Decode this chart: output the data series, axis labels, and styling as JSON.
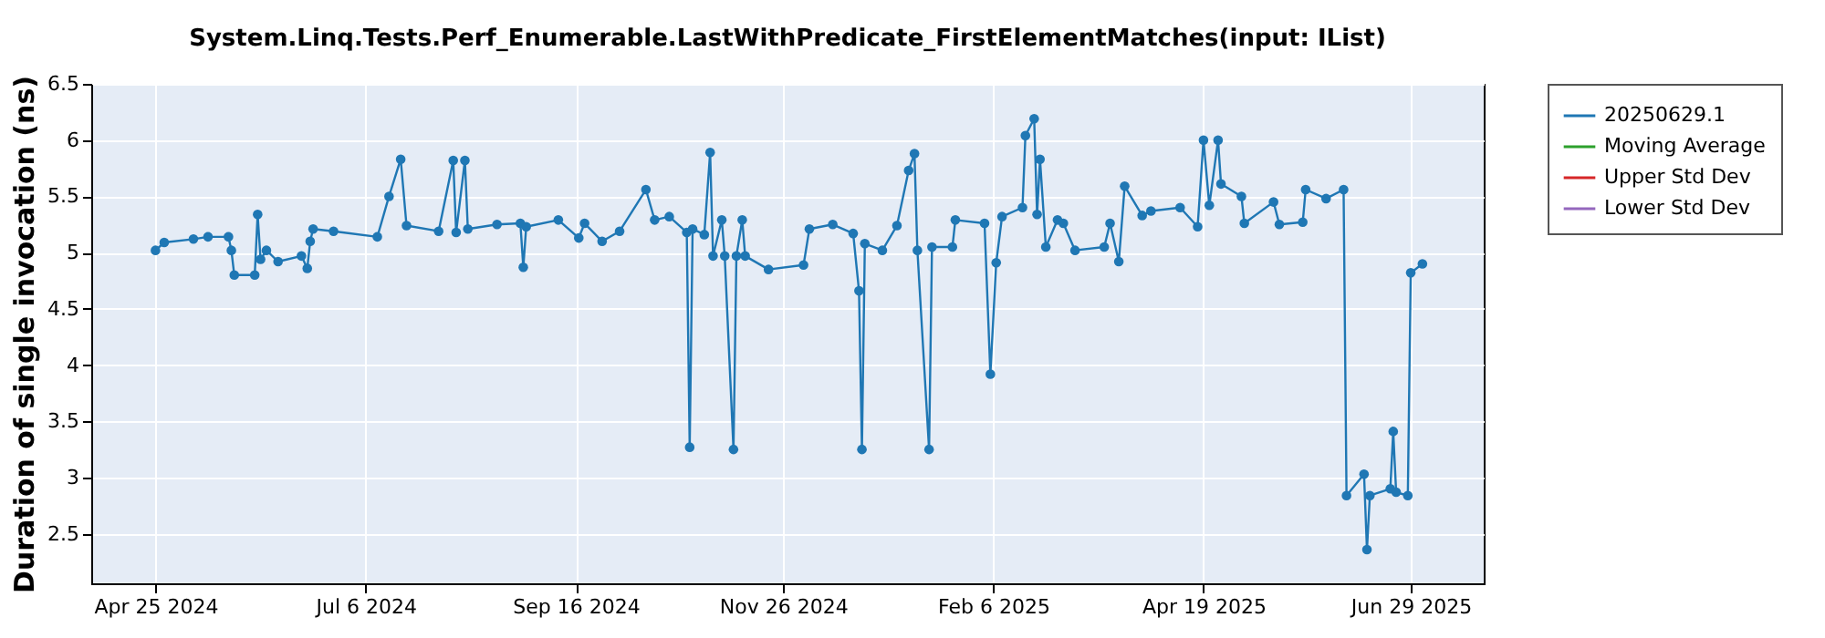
{
  "chart_data": {
    "type": "line",
    "title": "System.Linq.Tests.Perf_Enumerable.LastWithPredicate_FirstElementMatches(input: IList)",
    "ylabel": "Duration of single invocation (ns)",
    "x": [
      "2024-04-25",
      "2024-04-28",
      "2024-05-08",
      "2024-05-13",
      "2024-05-20",
      "2024-05-21",
      "2024-05-22",
      "2024-05-29",
      "2024-05-30",
      "2024-05-31",
      "2024-06-02",
      "2024-06-06",
      "2024-06-14",
      "2024-06-16",
      "2024-06-17",
      "2024-06-18",
      "2024-06-25",
      "2024-07-10",
      "2024-07-14",
      "2024-07-18",
      "2024-07-20",
      "2024-07-31",
      "2024-08-05",
      "2024-08-06",
      "2024-08-09",
      "2024-08-10",
      "2024-08-20",
      "2024-08-28",
      "2024-08-29",
      "2024-08-30",
      "2024-09-10",
      "2024-09-17",
      "2024-09-19",
      "2024-09-25",
      "2024-10-01",
      "2024-10-10",
      "2024-10-13",
      "2024-10-18",
      "2024-10-24",
      "2024-10-25",
      "2024-10-26",
      "2024-10-30",
      "2024-11-01",
      "2024-11-02",
      "2024-11-05",
      "2024-11-06",
      "2024-11-09",
      "2024-11-10",
      "2024-11-12",
      "2024-11-13",
      "2024-11-21",
      "2024-12-03",
      "2024-12-05",
      "2024-12-13",
      "2024-12-20",
      "2024-12-22",
      "2024-12-23",
      "2024-12-24",
      "2024-12-30",
      "2025-01-04",
      "2025-01-08",
      "2025-01-10",
      "2025-01-11",
      "2025-01-15",
      "2025-01-16",
      "2025-01-23",
      "2025-01-24",
      "2025-02-03",
      "2025-02-05",
      "2025-02-07",
      "2025-02-09",
      "2025-02-16",
      "2025-02-17",
      "2025-02-20",
      "2025-02-21",
      "2025-02-22",
      "2025-02-24",
      "2025-02-28",
      "2025-03-02",
      "2025-03-06",
      "2025-03-16",
      "2025-03-18",
      "2025-03-21",
      "2025-03-23",
      "2025-03-29",
      "2025-04-01",
      "2025-04-11",
      "2025-04-17",
      "2025-04-19",
      "2025-04-21",
      "2025-04-24",
      "2025-04-25",
      "2025-05-02",
      "2025-05-03",
      "2025-05-13",
      "2025-05-15",
      "2025-05-23",
      "2025-05-24",
      "2025-05-31",
      "2025-06-06",
      "2025-06-07",
      "2025-06-13",
      "2025-06-14",
      "2025-06-15",
      "2025-06-22",
      "2025-06-23",
      "2025-06-24",
      "2025-06-28",
      "2025-06-29",
      "2025-07-03"
    ],
    "series": [
      {
        "name": "20250629.1",
        "color": "#1f77b4",
        "values": [
          5.02,
          5.09,
          5.12,
          5.14,
          5.14,
          5.02,
          4.8,
          4.8,
          5.34,
          4.94,
          5.02,
          4.92,
          4.97,
          4.86,
          5.1,
          5.21,
          5.19,
          5.14,
          5.5,
          5.83,
          5.24,
          5.19,
          5.82,
          5.18,
          5.82,
          5.21,
          5.25,
          5.26,
          4.87,
          5.23,
          5.29,
          5.13,
          5.26,
          5.1,
          5.19,
          5.56,
          5.29,
          5.32,
          5.18,
          3.27,
          5.21,
          5.16,
          5.89,
          4.97,
          5.29,
          4.97,
          3.25,
          4.97,
          5.29,
          4.97,
          4.85,
          4.89,
          5.21,
          5.25,
          5.17,
          4.66,
          3.25,
          5.08,
          5.02,
          5.24,
          5.73,
          5.88,
          5.02,
          3.25,
          5.05,
          5.05,
          5.29,
          5.26,
          3.92,
          4.91,
          5.32,
          5.4,
          6.04,
          6.19,
          5.34,
          5.83,
          5.05,
          5.29,
          5.26,
          5.02,
          5.05,
          5.26,
          4.92,
          5.59,
          5.33,
          5.37,
          5.4,
          5.23,
          6.0,
          5.42,
          6.0,
          5.61,
          5.5,
          5.26,
          5.45,
          5.25,
          5.27,
          5.56,
          5.48,
          5.56,
          2.84,
          3.03,
          2.36,
          2.84,
          2.9,
          3.41,
          2.87,
          2.84,
          4.82,
          4.9
        ]
      },
      {
        "name": "Moving Average",
        "color": "#2ca02c",
        "values": [
          null,
          null,
          null,
          null,
          null,
          null,
          null,
          null,
          null,
          null,
          null,
          null,
          null,
          null,
          null,
          null,
          null,
          null,
          null,
          null,
          null,
          null,
          null,
          null,
          null,
          null,
          null,
          null,
          null,
          null,
          null,
          null,
          null,
          null,
          null,
          null,
          null,
          null,
          null,
          null,
          null,
          null,
          null,
          null,
          null,
          null,
          null,
          null,
          null,
          null,
          null,
          null,
          null,
          null,
          null,
          null,
          null,
          null,
          null,
          null,
          null,
          null,
          null,
          null,
          null,
          null,
          null,
          null,
          null,
          null,
          null,
          null,
          null,
          null,
          null,
          null,
          null,
          null,
          null,
          null,
          null,
          null,
          null,
          null,
          null,
          null,
          null,
          null,
          null,
          null,
          null,
          null,
          null,
          null,
          null,
          null,
          null,
          null,
          null,
          null,
          null,
          null,
          null,
          null,
          null,
          null,
          null,
          null,
          null,
          null
        ]
      },
      {
        "name": "Upper Std Dev",
        "color": "#d62728",
        "values": [
          null,
          null,
          null,
          null,
          null,
          null,
          null,
          null,
          null,
          null,
          null,
          null,
          null,
          null,
          null,
          null,
          null,
          null,
          null,
          null,
          null,
          null,
          null,
          null,
          null,
          null,
          null,
          null,
          null,
          null,
          null,
          null,
          null,
          null,
          null,
          null,
          null,
          null,
          null,
          null,
          null,
          null,
          null,
          null,
          null,
          null,
          null,
          null,
          null,
          null,
          null,
          null,
          null,
          null,
          null,
          null,
          null,
          null,
          null,
          null,
          null,
          null,
          null,
          null,
          null,
          null,
          null,
          null,
          null,
          null,
          null,
          null,
          null,
          null,
          null,
          null,
          null,
          null,
          null,
          null,
          null,
          null,
          null,
          null,
          null,
          null,
          null,
          null,
          null,
          null,
          null,
          null,
          null,
          null,
          null,
          null,
          null,
          null,
          null,
          null,
          null,
          null,
          null,
          null,
          null,
          null,
          null,
          null,
          null,
          null
        ]
      },
      {
        "name": "Lower Std Dev",
        "color": "#9467bd",
        "values": [
          null,
          null,
          null,
          null,
          null,
          null,
          null,
          null,
          null,
          null,
          null,
          null,
          null,
          null,
          null,
          null,
          null,
          null,
          null,
          null,
          null,
          null,
          null,
          null,
          null,
          null,
          null,
          null,
          null,
          null,
          null,
          null,
          null,
          null,
          null,
          null,
          null,
          null,
          null,
          null,
          null,
          null,
          null,
          null,
          null,
          null,
          null,
          null,
          null,
          null,
          null,
          null,
          null,
          null,
          null,
          null,
          null,
          null,
          null,
          null,
          null,
          null,
          null,
          null,
          null,
          null,
          null,
          null,
          null,
          null,
          null,
          null,
          null,
          null,
          null,
          null,
          null,
          null,
          null,
          null,
          null,
          null,
          null,
          null,
          null,
          null,
          null,
          null,
          null,
          null,
          null,
          null,
          null,
          null,
          null,
          null,
          null,
          null,
          null,
          null,
          null,
          null,
          null,
          null,
          null,
          null,
          null,
          null,
          null,
          null
        ]
      }
    ],
    "xlim": [
      "2024-04-03",
      "2025-07-24"
    ],
    "xticks": [
      {
        "value": "2024-04-25",
        "label": "Apr 25 2024"
      },
      {
        "value": "2024-07-06",
        "label": "Jul 6 2024"
      },
      {
        "value": "2024-09-16",
        "label": "Sep 16 2024"
      },
      {
        "value": "2024-11-26",
        "label": "Nov 26 2024"
      },
      {
        "value": "2025-02-06",
        "label": "Feb 6 2025"
      },
      {
        "value": "2025-04-19",
        "label": "Apr 19 2025"
      },
      {
        "value": "2025-06-29",
        "label": "Jun 29 2025"
      }
    ],
    "ylim": [
      2.06,
      6.5
    ],
    "yticks": [
      2.5,
      3,
      3.5,
      4,
      4.5,
      5,
      5.5,
      6,
      6.5
    ],
    "grid": true,
    "legend": "right",
    "marker": "circle",
    "line_style": "solid"
  }
}
